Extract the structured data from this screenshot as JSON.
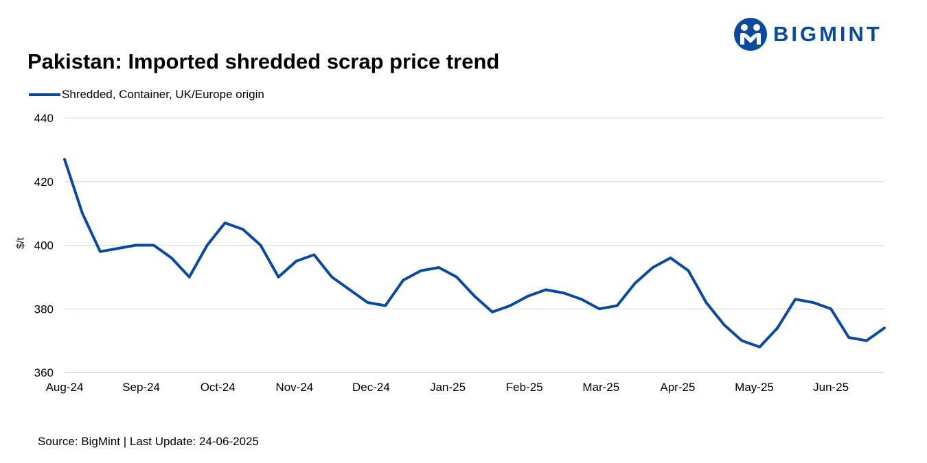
{
  "brand": {
    "name": "BIGMINT",
    "logo_icon": "bigmint-people-logo-icon",
    "color": "#0a4a9e"
  },
  "source_text": "Source: BigMint | Last Update: 24-06-2025",
  "chart_data": {
    "type": "line",
    "title": "Pakistan: Imported shredded scrap price trend",
    "xlabel": "",
    "ylabel": "$/t",
    "ylim": [
      360,
      440
    ],
    "yticks": [
      360,
      380,
      400,
      420,
      440
    ],
    "grid": true,
    "legend_position": "top-left",
    "x_tick_labels": [
      "Aug-24",
      "Sep-24",
      "Oct-24",
      "Nov-24",
      "Dec-24",
      "Jan-25",
      "Feb-25",
      "Mar-25",
      "Apr-25",
      "May-25",
      "Jun-25"
    ],
    "points_per_month": 4.3,
    "series": [
      {
        "name": "Shredded, Container, UK/Europe origin",
        "color": "#0a4a9e",
        "values": [
          427,
          410,
          398,
          399,
          400,
          400,
          396,
          390,
          400,
          407,
          405,
          400,
          390,
          395,
          397,
          390,
          386,
          382,
          381,
          389,
          392,
          393,
          390,
          384,
          379,
          381,
          384,
          386,
          385,
          383,
          380,
          381,
          388,
          393,
          396,
          392,
          382,
          375,
          370,
          368,
          374,
          383,
          382,
          380,
          371,
          370,
          374
        ]
      }
    ]
  }
}
